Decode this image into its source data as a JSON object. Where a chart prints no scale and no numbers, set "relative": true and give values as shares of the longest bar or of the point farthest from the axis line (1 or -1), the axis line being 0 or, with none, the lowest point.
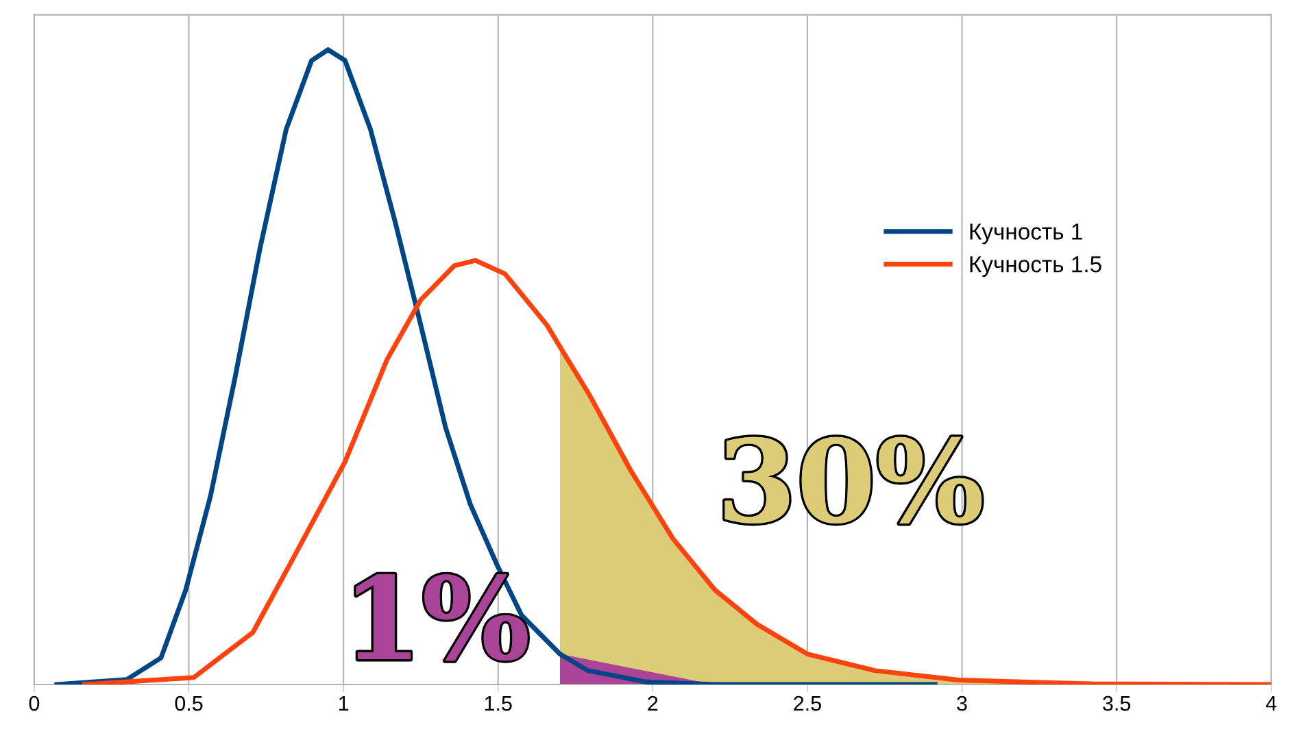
{
  "chart_data": {
    "type": "line",
    "relative": true,
    "xlim": [
      0,
      4
    ],
    "xticks": [
      0,
      {
        "value": 0.5,
        "label": "0.5"
      },
      1,
      {
        "value": 1.5,
        "label": "1.5"
      },
      2,
      {
        "value": 2.5,
        "label": "2.5"
      },
      3,
      {
        "value": 3.5,
        "label": "3.5"
      },
      4
    ],
    "grid": "x",
    "legend": "top right",
    "tick_labels": "x",
    "series": [
      {
        "name": "Кучность 1",
        "color": "#004586",
        "x": [
          0.073,
          0.3,
          0.41,
          0.49,
          0.57,
          0.65,
          0.73,
          0.815,
          0.897,
          0.95,
          1.005,
          1.087,
          1.168,
          1.25,
          1.33,
          1.41,
          1.495,
          1.576,
          1.7,
          1.79,
          1.98,
          2.2,
          2.913
        ],
        "values": [
          0,
          0.008,
          0.042,
          0.149,
          0.297,
          0.485,
          0.687,
          0.875,
          0.983,
          1.0,
          0.983,
          0.875,
          0.727,
          0.566,
          0.405,
          0.284,
          0.19,
          0.109,
          0.048,
          0.022,
          0.004,
          0,
          0
        ]
      },
      {
        "name": "Кучность 1.5",
        "color": "#ff420e",
        "x": [
          0.163,
          0.516,
          0.707,
          0.842,
          1.005,
          1.141,
          1.25,
          1.359,
          1.427,
          1.522,
          1.658,
          1.7,
          1.793,
          1.929,
          2.065,
          2.201,
          2.337,
          2.5,
          2.717,
          2.989,
          3.42,
          4.0
        ],
        "values": [
          0,
          0.011,
          0.082,
          0.203,
          0.351,
          0.512,
          0.606,
          0.66,
          0.668,
          0.647,
          0.566,
          0.532,
          0.458,
          0.337,
          0.23,
          0.149,
          0.095,
          0.048,
          0.022,
          0.007,
          0.001,
          0
        ]
      },
      {
        "type": "area",
        "color": "#ddcc77",
        "x": [
          1.7,
          1.793,
          1.929,
          2.065,
          2.201,
          2.337,
          2.5,
          2.717,
          2.989,
          3.42,
          4.0
        ],
        "values": [
          0.532,
          0.458,
          0.337,
          0.23,
          0.149,
          0.095,
          0.048,
          0.022,
          0.007,
          0.001,
          0
        ]
      },
      {
        "type": "area",
        "color": "#aa4499",
        "x": [
          1.7,
          2.2
        ],
        "values": [
          0.048,
          0
        ]
      }
    ],
    "annotations": [
      "1%",
      "30%"
    ]
  }
}
